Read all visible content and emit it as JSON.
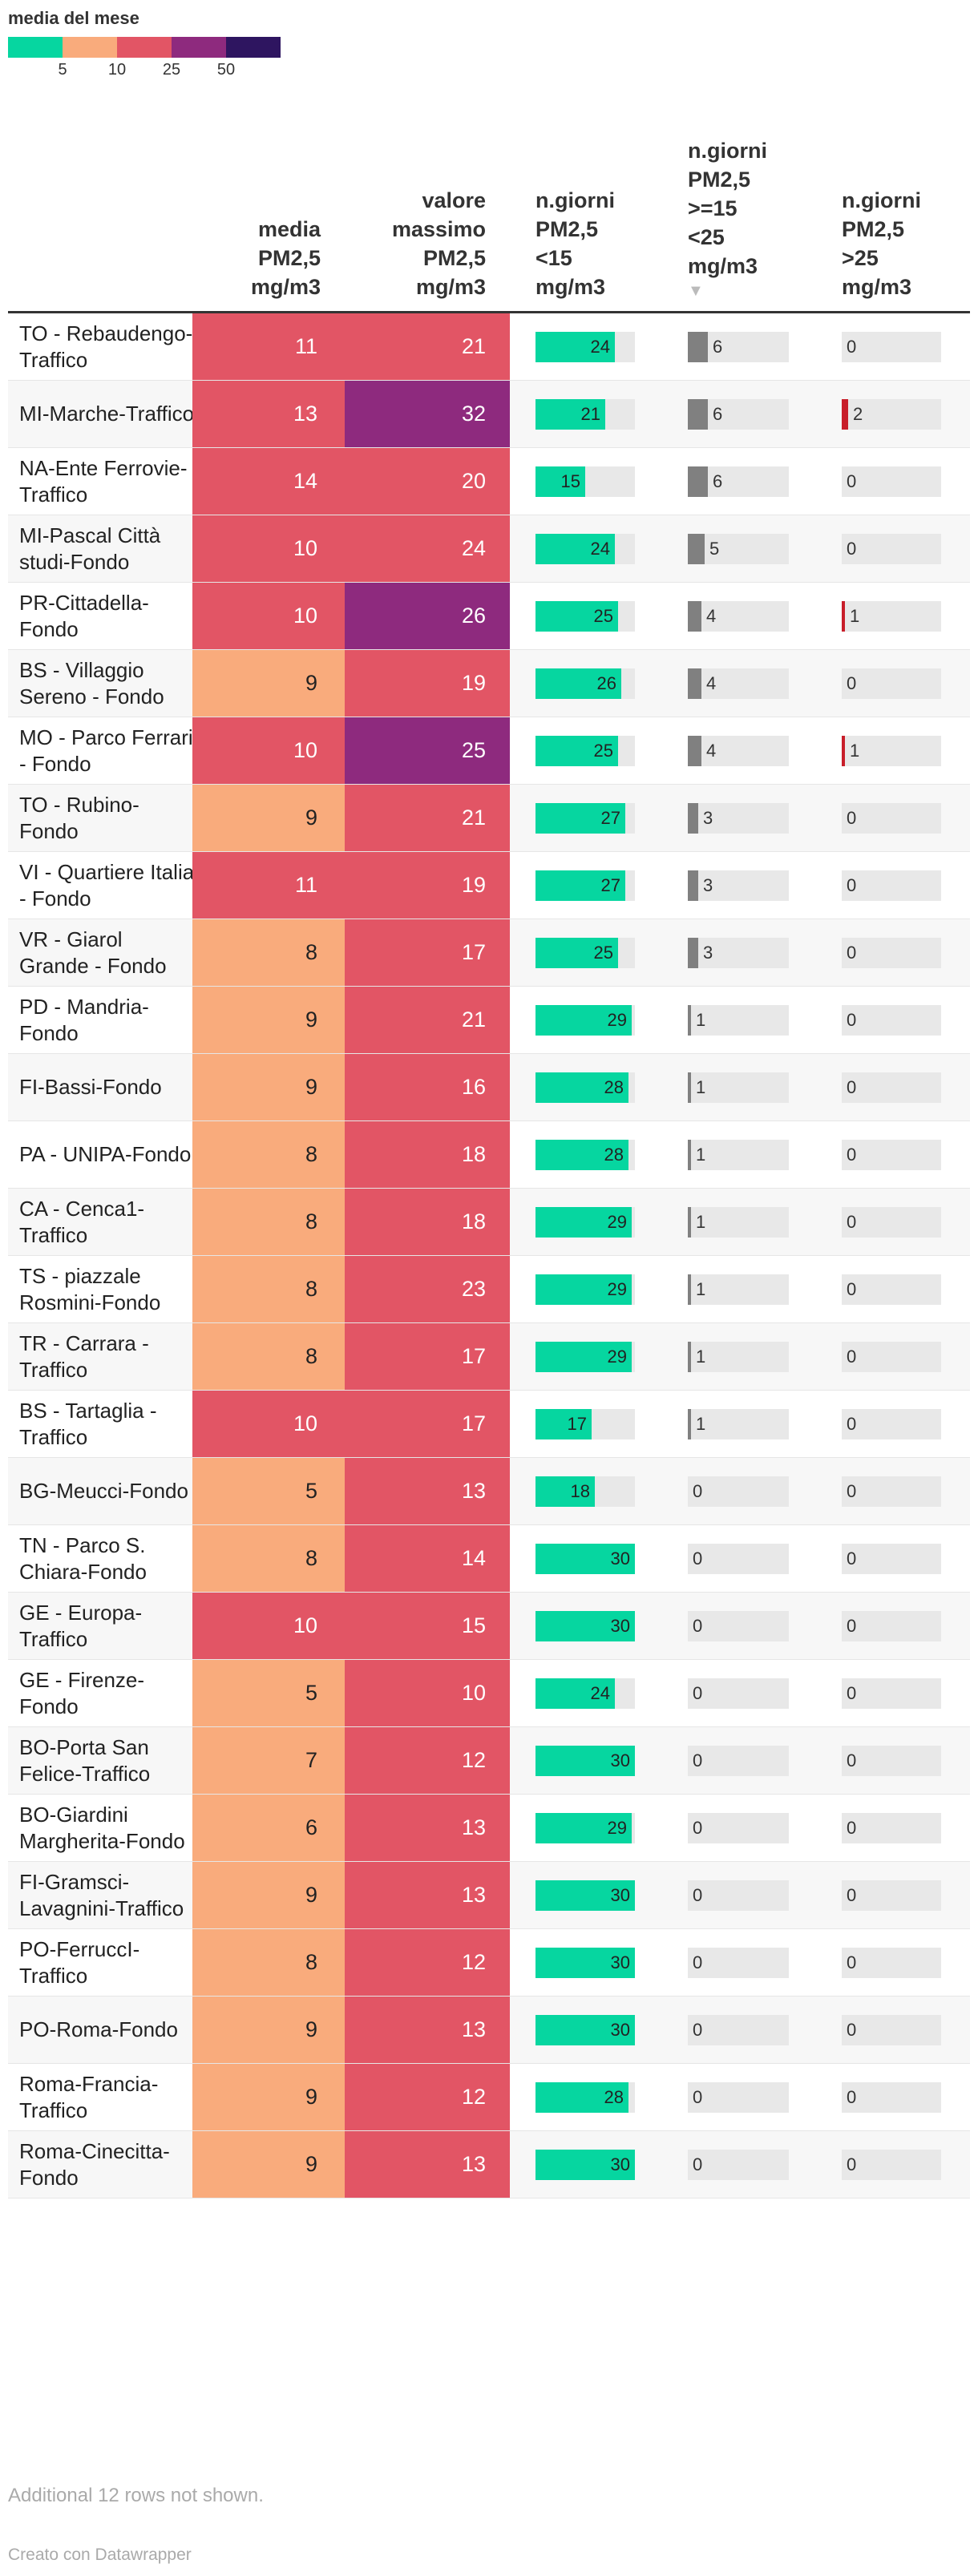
{
  "legend": {
    "title": "media del mese",
    "colors": [
      "#06d6a0",
      "#f9ab7c",
      "#e25565",
      "#8e2a7e",
      "#2e1560"
    ],
    "ticks": [
      "5",
      "10",
      "25",
      "50"
    ]
  },
  "columns": {
    "media": [
      "media",
      "PM2,5",
      "mg/m3"
    ],
    "max": [
      "valore",
      "massimo",
      "PM2,5",
      "mg/m3"
    ],
    "lt15": [
      "n.giorni",
      "PM2,5",
      "<15",
      "mg/m3"
    ],
    "mid": [
      "n.giorni",
      "PM2,5",
      ">=15",
      "<25",
      "mg/m3"
    ],
    "gt25": [
      "n.giorni",
      "PM2,5",
      ">25",
      "mg/m3"
    ],
    "sort_indicator": "▼"
  },
  "colors": {
    "heat_5_10": "#f9ab7c",
    "heat_10_25": "#e25565",
    "heat_25_50": "#8e2a7e",
    "bar_lt15": "#06d6a0",
    "bar_mid": "#808080",
    "bar_gt25": "#c81e2a",
    "bar_track": "#e8e8e8"
  },
  "chart_data": {
    "type": "table",
    "bar_scale_max": 30,
    "rows": [
      {
        "station": "TO - Rebaudengo-Traffico",
        "media": 11,
        "max": 21,
        "lt15": 24,
        "mid": 6,
        "gt25": 0
      },
      {
        "station": "MI-Marche-Traffico",
        "media": 13,
        "max": 32,
        "lt15": 21,
        "mid": 6,
        "gt25": 2
      },
      {
        "station": "NA-Ente Ferrovie-Traffico",
        "media": 14,
        "max": 20,
        "lt15": 15,
        "mid": 6,
        "gt25": 0
      },
      {
        "station": "MI-Pascal Città studi-Fondo",
        "media": 10,
        "max": 24,
        "lt15": 24,
        "mid": 5,
        "gt25": 0
      },
      {
        "station": "PR-Cittadella-Fondo",
        "media": 10,
        "max": 26,
        "lt15": 25,
        "mid": 4,
        "gt25": 1
      },
      {
        "station": "BS - Villaggio Sereno - Fondo",
        "media": 9,
        "max": 19,
        "lt15": 26,
        "mid": 4,
        "gt25": 0
      },
      {
        "station": "MO - Parco Ferrari - Fondo",
        "media": 10,
        "max": 25,
        "lt15": 25,
        "mid": 4,
        "gt25": 1
      },
      {
        "station": "TO - Rubino-Fondo",
        "media": 9,
        "max": 21,
        "lt15": 27,
        "mid": 3,
        "gt25": 0
      },
      {
        "station": "VI - Quartiere Italia - Fondo",
        "media": 11,
        "max": 19,
        "lt15": 27,
        "mid": 3,
        "gt25": 0
      },
      {
        "station": "VR - Giarol Grande - Fondo",
        "media": 8,
        "max": 17,
        "lt15": 25,
        "mid": 3,
        "gt25": 0
      },
      {
        "station": "PD - Mandria-Fondo",
        "media": 9,
        "max": 21,
        "lt15": 29,
        "mid": 1,
        "gt25": 0
      },
      {
        "station": "FI-Bassi-Fondo",
        "media": 9,
        "max": 16,
        "lt15": 28,
        "mid": 1,
        "gt25": 0
      },
      {
        "station": "PA - UNIPA-Fondo",
        "media": 8,
        "max": 18,
        "lt15": 28,
        "mid": 1,
        "gt25": 0
      },
      {
        "station": "CA - Cenca1-Traffico",
        "media": 8,
        "max": 18,
        "lt15": 29,
        "mid": 1,
        "gt25": 0
      },
      {
        "station": "TS - piazzale Rosmini-Fondo",
        "media": 8,
        "max": 23,
        "lt15": 29,
        "mid": 1,
        "gt25": 0
      },
      {
        "station": "TR - Carrara - Traffico",
        "media": 8,
        "max": 17,
        "lt15": 29,
        "mid": 1,
        "gt25": 0
      },
      {
        "station": "BS - Tartaglia - Traffico",
        "media": 10,
        "max": 17,
        "lt15": 17,
        "mid": 1,
        "gt25": 0
      },
      {
        "station": "BG-Meucci-Fondo",
        "media": 5,
        "max": 13,
        "lt15": 18,
        "mid": 0,
        "gt25": 0
      },
      {
        "station": "TN - Parco S. Chiara-Fondo",
        "media": 8,
        "max": 14,
        "lt15": 30,
        "mid": 0,
        "gt25": 0
      },
      {
        "station": "GE - Europa-Traffico",
        "media": 10,
        "max": 15,
        "lt15": 30,
        "mid": 0,
        "gt25": 0
      },
      {
        "station": "GE - Firenze-Fondo",
        "media": 5,
        "max": 10,
        "lt15": 24,
        "mid": 0,
        "gt25": 0
      },
      {
        "station": "BO-Porta San Felice-Traffico",
        "media": 7,
        "max": 12,
        "lt15": 30,
        "mid": 0,
        "gt25": 0
      },
      {
        "station": "BO-Giardini Margherita-Fondo",
        "media": 6,
        "max": 13,
        "lt15": 29,
        "mid": 0,
        "gt25": 0
      },
      {
        "station": "FI-Gramsci-Lavagnini-Traffico",
        "media": 9,
        "max": 13,
        "lt15": 30,
        "mid": 0,
        "gt25": 0
      },
      {
        "station": "PO-FerruccI-Traffico",
        "media": 8,
        "max": 12,
        "lt15": 30,
        "mid": 0,
        "gt25": 0
      },
      {
        "station": "PO-Roma-Fondo",
        "media": 9,
        "max": 13,
        "lt15": 30,
        "mid": 0,
        "gt25": 0
      },
      {
        "station": "Roma-Francia-Traffico",
        "media": 9,
        "max": 12,
        "lt15": 28,
        "mid": 0,
        "gt25": 0
      },
      {
        "station": "Roma-Cinecitta-Fondo",
        "media": 9,
        "max": 13,
        "lt15": 30,
        "mid": 0,
        "gt25": 0
      }
    ]
  },
  "footer": {
    "note": "Additional 12 rows not shown.",
    "credit": "Creato con Datawrapper"
  }
}
